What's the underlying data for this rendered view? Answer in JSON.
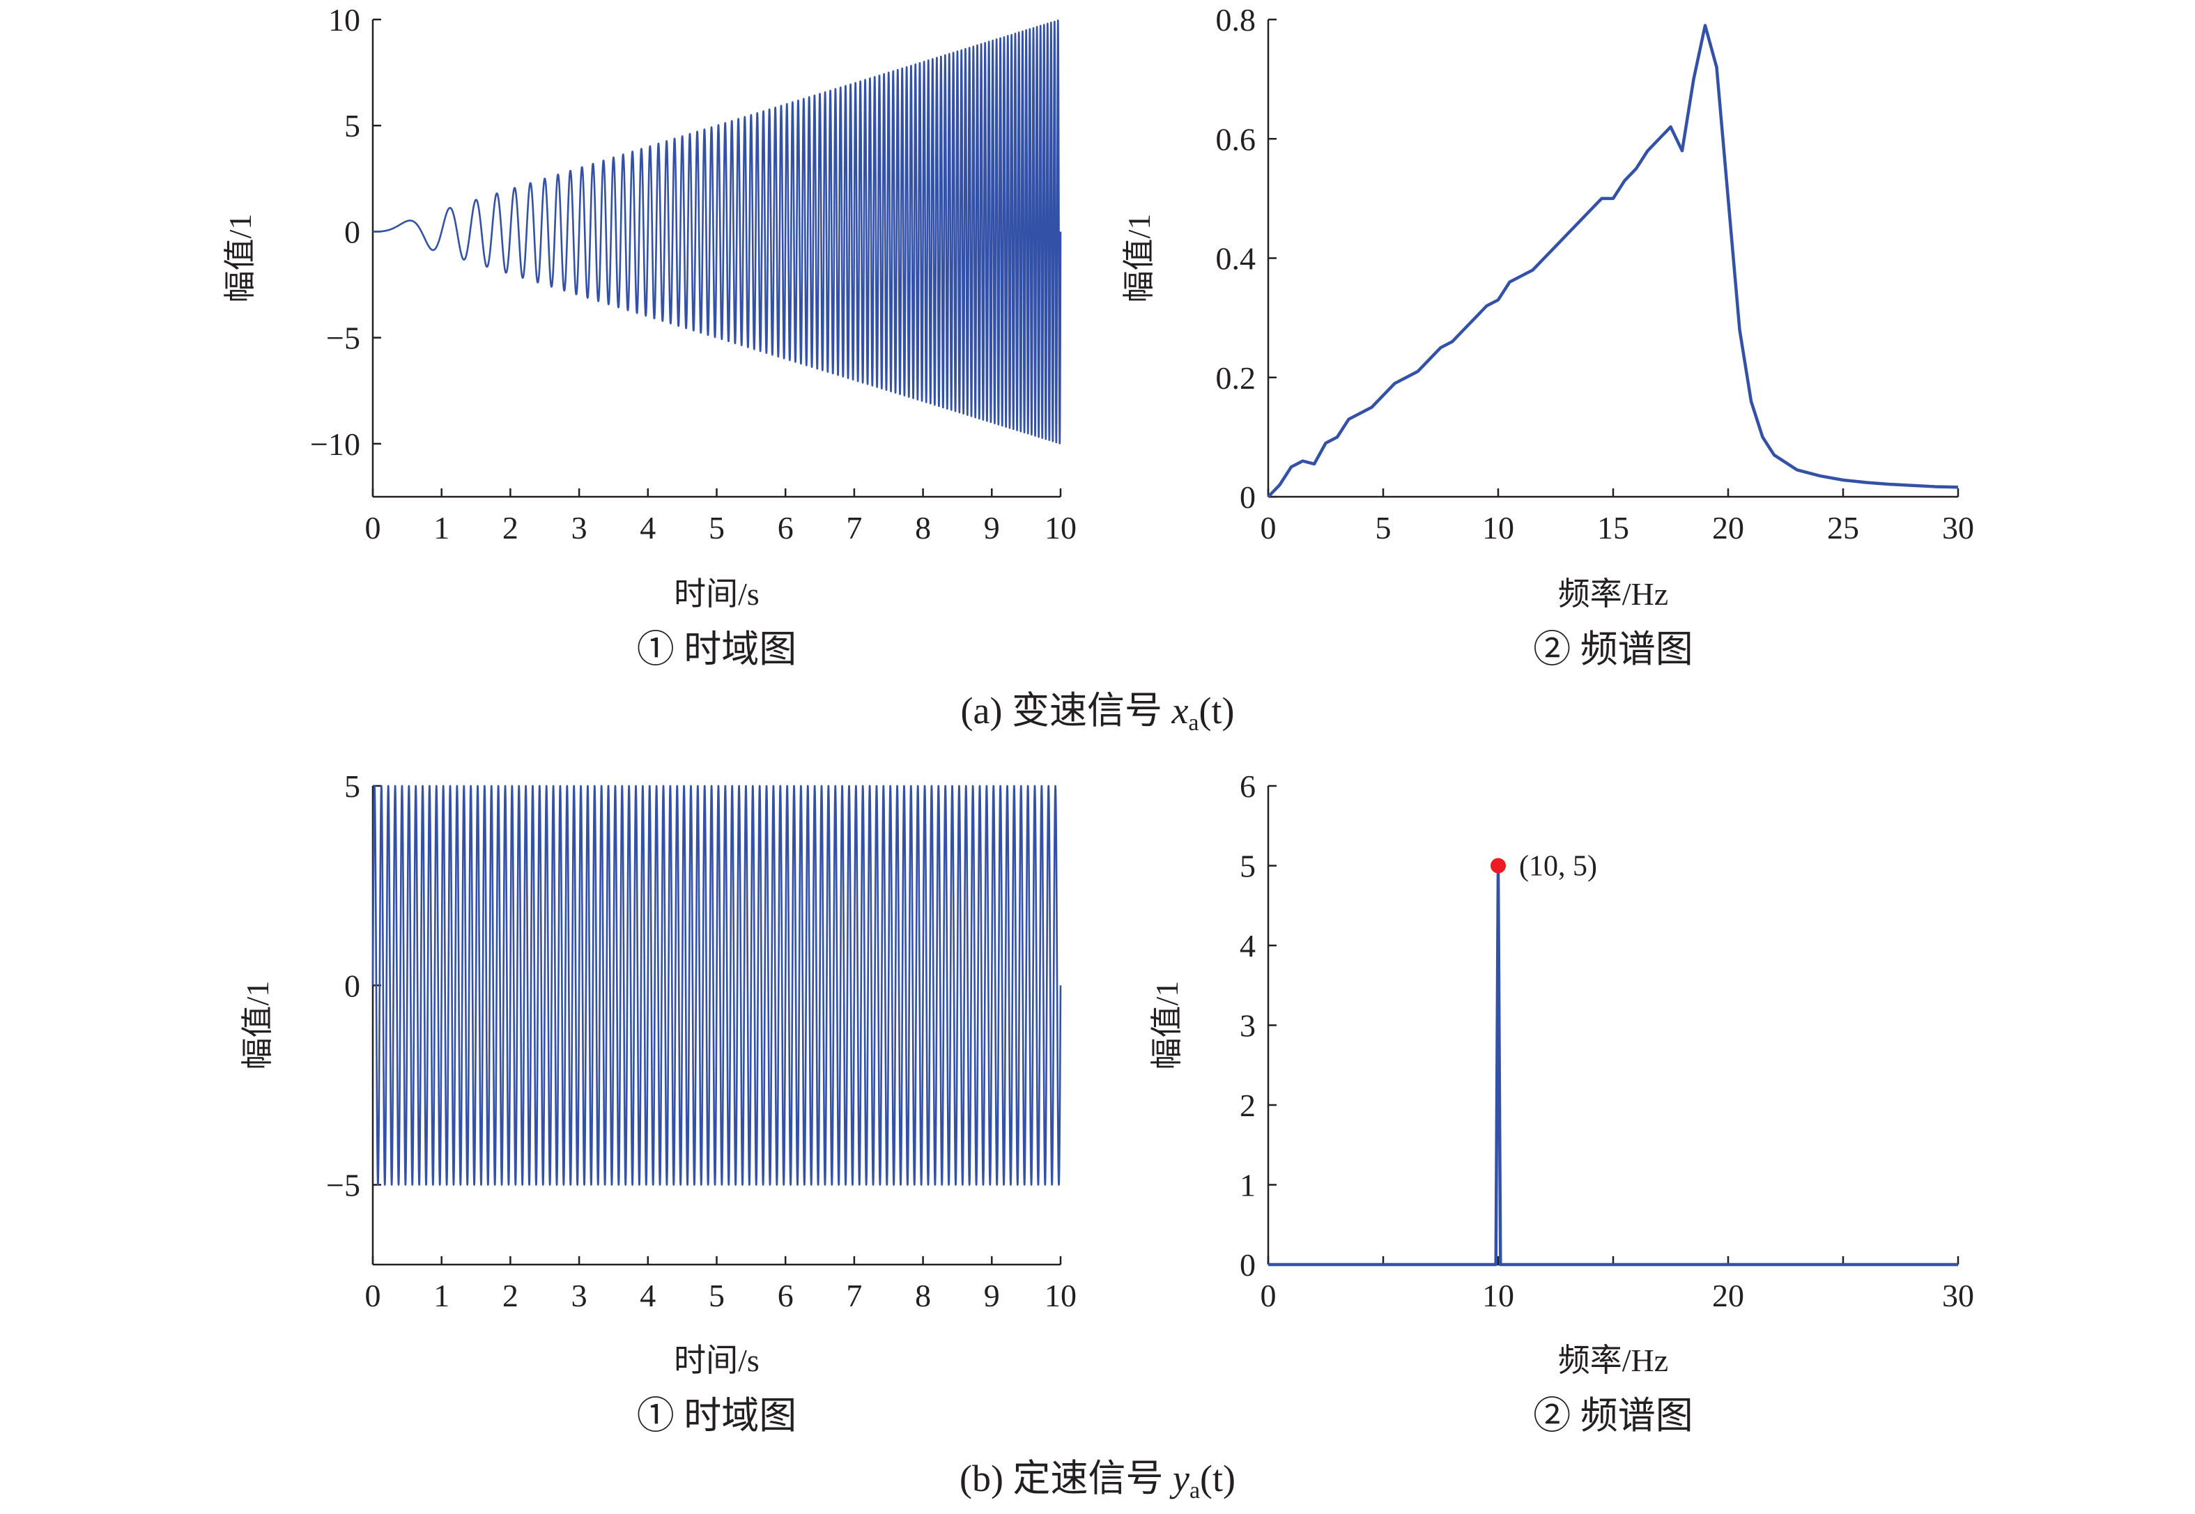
{
  "figure": {
    "caption_a_prefix": "(a) 变速信号 ",
    "caption_a_var": "x",
    "caption_a_sub": "a",
    "caption_a_suffix": "(t)",
    "caption_b_prefix": "(b) 定速信号 ",
    "caption_b_var": "y",
    "caption_b_sub": "a",
    "caption_b_suffix": "(t)"
  },
  "colors": {
    "line": "#3451a8",
    "marker": "#ed1c24",
    "axis": "#231f20"
  },
  "chart_data": [
    {
      "id": "a1",
      "type": "line",
      "title": "① 时域图",
      "xlabel": "时间/s",
      "ylabel": "幅值/1",
      "xlim": [
        0,
        10
      ],
      "ylim": [
        -12.5,
        10
      ],
      "xticks": [
        0,
        1,
        2,
        3,
        4,
        5,
        6,
        7,
        8,
        9,
        10
      ],
      "yticks": [
        -10,
        -5,
        0,
        5,
        10
      ],
      "ytick_labels": [
        "−10",
        "−5",
        "0",
        "5",
        "10"
      ],
      "signal": {
        "kind": "chirp",
        "amplitude_start": 0,
        "amplitude_end": 10,
        "freq_start_hz": 0,
        "freq_end_hz": 20,
        "duration_s": 10
      }
    },
    {
      "id": "a2",
      "type": "line",
      "title": "② 频谱图",
      "xlabel": "频率/Hz",
      "ylabel": "幅值/1",
      "xlim": [
        0,
        30
      ],
      "ylim": [
        0,
        0.8
      ],
      "xticks": [
        0,
        5,
        10,
        15,
        20,
        25,
        30
      ],
      "yticks": [
        0,
        0.2,
        0.4,
        0.6,
        0.8
      ],
      "ytick_labels": [
        "0",
        "0.2",
        "0.4",
        "0.6",
        "0.8"
      ],
      "x": [
        0,
        0.5,
        1,
        1.5,
        2,
        2.5,
        3,
        3.5,
        4,
        4.5,
        5,
        5.5,
        6,
        6.5,
        7,
        7.5,
        8,
        8.5,
        9,
        9.5,
        10,
        10.5,
        11,
        11.5,
        12,
        12.5,
        13,
        13.5,
        14,
        14.5,
        15,
        15.5,
        16,
        16.5,
        17,
        17.5,
        18,
        18.5,
        19,
        19.5,
        20,
        20.5,
        21,
        21.5,
        22,
        23,
        24,
        25,
        26,
        27,
        28,
        29,
        30
      ],
      "y": [
        0,
        0.02,
        0.05,
        0.06,
        0.055,
        0.09,
        0.1,
        0.13,
        0.14,
        0.15,
        0.17,
        0.19,
        0.2,
        0.21,
        0.23,
        0.25,
        0.26,
        0.28,
        0.3,
        0.32,
        0.33,
        0.36,
        0.37,
        0.38,
        0.4,
        0.42,
        0.44,
        0.46,
        0.48,
        0.5,
        0.5,
        0.53,
        0.55,
        0.58,
        0.6,
        0.62,
        0.58,
        0.7,
        0.79,
        0.72,
        0.5,
        0.28,
        0.16,
        0.1,
        0.07,
        0.045,
        0.035,
        0.028,
        0.024,
        0.021,
        0.019,
        0.017,
        0.016
      ]
    },
    {
      "id": "b1",
      "type": "line",
      "title": "① 时域图",
      "xlabel": "时间/s",
      "ylabel": "幅值/1",
      "xlim": [
        0,
        10
      ],
      "ylim": [
        -7,
        5
      ],
      "xticks": [
        0,
        1,
        2,
        3,
        4,
        5,
        6,
        7,
        8,
        9,
        10
      ],
      "yticks": [
        -5,
        0,
        5
      ],
      "ytick_labels": [
        "−5",
        "0",
        "5"
      ],
      "signal": {
        "kind": "sine",
        "amplitude": 5,
        "freq_hz": 10,
        "duration_s": 10
      }
    },
    {
      "id": "b2",
      "type": "line",
      "title": "② 频谱图",
      "xlabel": "频率/Hz",
      "ylabel": "幅值/1",
      "xlim": [
        0,
        30
      ],
      "ylim": [
        0,
        6
      ],
      "xticks": [
        0,
        5,
        10,
        15,
        20,
        25,
        30
      ],
      "xtick_labels": [
        "0",
        "",
        "10",
        "",
        "20",
        "",
        "30"
      ],
      "yticks": [
        0,
        1,
        2,
        3,
        4,
        5,
        6
      ],
      "ytick_labels": [
        "0",
        "1",
        "2",
        "3",
        "4",
        "5",
        "6"
      ],
      "x": [
        0,
        9.9,
        10,
        10.1,
        30
      ],
      "y": [
        0,
        0,
        5,
        0,
        0
      ],
      "annotation": {
        "x": 10,
        "y": 5,
        "text": "(10, 5)"
      }
    }
  ]
}
